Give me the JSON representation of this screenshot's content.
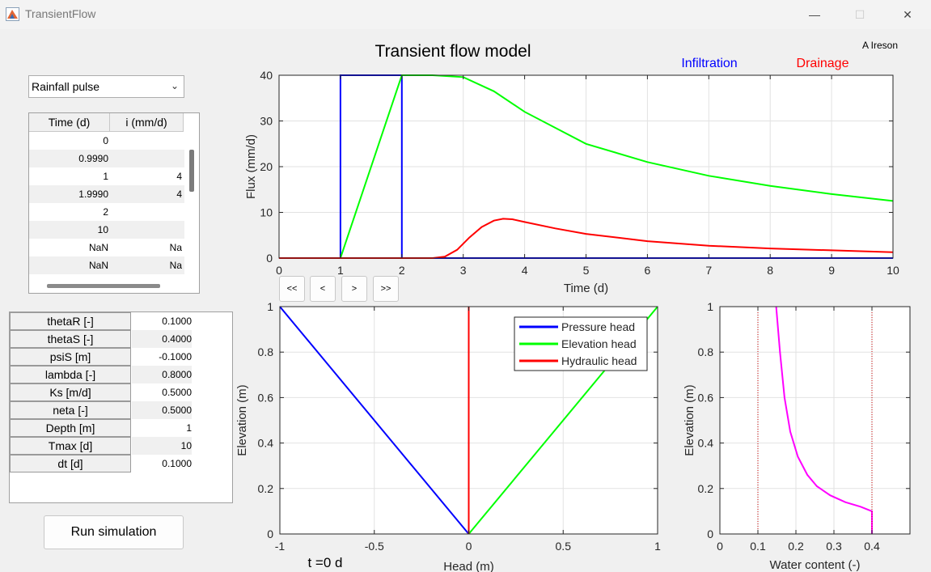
{
  "window": {
    "title": "TransientFlow",
    "controls": [
      "—",
      "☐",
      "✕"
    ]
  },
  "top_chart_title": "Transient flow model",
  "author": "A Ireson",
  "dropdown": {
    "selected": "Rainfall pulse"
  },
  "table": {
    "headers": [
      "Time (d)",
      "i (mm/d)"
    ],
    "rows": [
      [
        "0",
        ""
      ],
      [
        "0.9990",
        ""
      ],
      [
        "1",
        "4"
      ],
      [
        "1.9990",
        "4"
      ],
      [
        "2",
        ""
      ],
      [
        "10",
        ""
      ],
      [
        "NaN",
        "Na"
      ],
      [
        "NaN",
        "Na"
      ]
    ]
  },
  "params": [
    {
      "label": "thetaR [-]",
      "value": "0.1000"
    },
    {
      "label": "thetaS [-]",
      "value": "0.4000"
    },
    {
      "label": "psiS [m]",
      "value": "-0.1000"
    },
    {
      "label": "lambda [-]",
      "value": "0.8000"
    },
    {
      "label": "Ks [m/d]",
      "value": "0.5000"
    },
    {
      "label": "neta [-]",
      "value": "0.5000"
    },
    {
      "label": "Depth [m]",
      "value": "1"
    },
    {
      "label": "Tmax [d]",
      "value": "10"
    },
    {
      "label": "dt [d]",
      "value": "0.1000"
    }
  ],
  "run_button": "Run simulation",
  "nav_buttons": [
    "<<",
    "<",
    ">",
    ">>"
  ],
  "time_label": "t =0 d",
  "colors": {
    "blue": "#0000ff",
    "green": "#00ff00",
    "red": "#ff0000",
    "magenta": "#ff00ff"
  },
  "chart_data": [
    {
      "type": "line",
      "title": "Transient flow model",
      "xlabel": "Time (d)",
      "ylabel": "Flux (mm/d)",
      "xlim": [
        0,
        10
      ],
      "ylim": [
        0,
        40
      ],
      "xticks": [
        0,
        1,
        2,
        3,
        4,
        5,
        6,
        7,
        8,
        9,
        10
      ],
      "yticks": [
        0,
        10,
        20,
        30,
        40
      ],
      "grid": true,
      "legend_labels": [
        "Infiltration",
        "Drainage"
      ],
      "series": [
        {
          "name": "Infiltration",
          "color": "#0000ff",
          "x": [
            0,
            1,
            1,
            2,
            2,
            2,
            2,
            10
          ],
          "y": [
            0,
            0,
            40,
            40,
            26,
            40,
            0,
            0
          ]
        },
        {
          "name": "",
          "color": "#00ff00",
          "x": [
            0,
            1,
            2,
            2.5,
            3.0,
            3.5,
            4,
            5,
            6,
            7,
            8,
            9,
            10
          ],
          "y": [
            0,
            0,
            40,
            40,
            39.6,
            36.5,
            32.0,
            25.0,
            21.0,
            18.0,
            15.8,
            14.0,
            12.5
          ]
        },
        {
          "name": "Drainage",
          "color": "#ff0000",
          "x": [
            0,
            2.5,
            2.7,
            2.9,
            3.1,
            3.3,
            3.5,
            3.65,
            3.8,
            4.0,
            4.5,
            5,
            6,
            7,
            8,
            9,
            10
          ],
          "y": [
            0,
            0,
            0.3,
            1.8,
            4.5,
            6.8,
            8.2,
            8.6,
            8.5,
            7.9,
            6.5,
            5.3,
            3.7,
            2.7,
            2.1,
            1.7,
            1.3
          ]
        }
      ]
    },
    {
      "type": "line",
      "xlabel": "Head (m)",
      "ylabel": "Elevation (m)",
      "xlim": [
        -1,
        1
      ],
      "ylim": [
        0,
        1
      ],
      "xticks": [
        -1,
        -0.5,
        0,
        0.5,
        1
      ],
      "xtick_labels": [
        "-1",
        "-0.5",
        "0",
        "0.5",
        "1"
      ],
      "yticks": [
        0,
        0.2,
        0.4,
        0.6,
        0.8,
        1
      ],
      "ytick_labels": [
        "0",
        "0.2",
        "0.4",
        "0.6",
        "0.8",
        "1"
      ],
      "grid": true,
      "legend": "top-right",
      "series": [
        {
          "name": "Pressure head",
          "color": "#0000ff",
          "x": [
            -1,
            0
          ],
          "y": [
            1,
            0
          ]
        },
        {
          "name": "Elevation head",
          "color": "#00ff00",
          "x": [
            0,
            1
          ],
          "y": [
            0,
            1
          ]
        },
        {
          "name": "Hydraulic head",
          "color": "#ff0000",
          "x": [
            0,
            0
          ],
          "y": [
            0,
            1
          ]
        }
      ]
    },
    {
      "type": "line",
      "xlabel": "Water content (-)",
      "ylabel": "Elevation (m)",
      "xlim": [
        0,
        0.5
      ],
      "ylim": [
        0,
        1
      ],
      "xticks": [
        0,
        0.1,
        0.2,
        0.3,
        0.4
      ],
      "xtick_labels": [
        "0",
        "0.1",
        "0.2",
        "0.3",
        "0.4"
      ],
      "yticks": [
        0,
        0.2,
        0.4,
        0.6,
        0.8,
        1
      ],
      "ytick_labels": [
        "0",
        "0.2",
        "0.4",
        "0.6",
        "0.8",
        "1"
      ],
      "grid": true,
      "series": [
        {
          "name": "",
          "color": "#ff00ff",
          "x": [
            0.4,
            0.4,
            0.37,
            0.33,
            0.29,
            0.255,
            0.23,
            0.205,
            0.185,
            0.17,
            0.158,
            0.148
          ],
          "y": [
            0,
            0.1,
            0.12,
            0.14,
            0.17,
            0.21,
            0.26,
            0.34,
            0.45,
            0.6,
            0.8,
            1.0
          ]
        },
        {
          "name": "",
          "color": "#cc0000",
          "dotted": true,
          "x": [
            0.1,
            0.1
          ],
          "y": [
            0,
            1
          ]
        },
        {
          "name": "",
          "color": "#cc0000",
          "dotted": true,
          "x": [
            0.4,
            0.4
          ],
          "y": [
            0,
            1
          ]
        }
      ]
    }
  ]
}
